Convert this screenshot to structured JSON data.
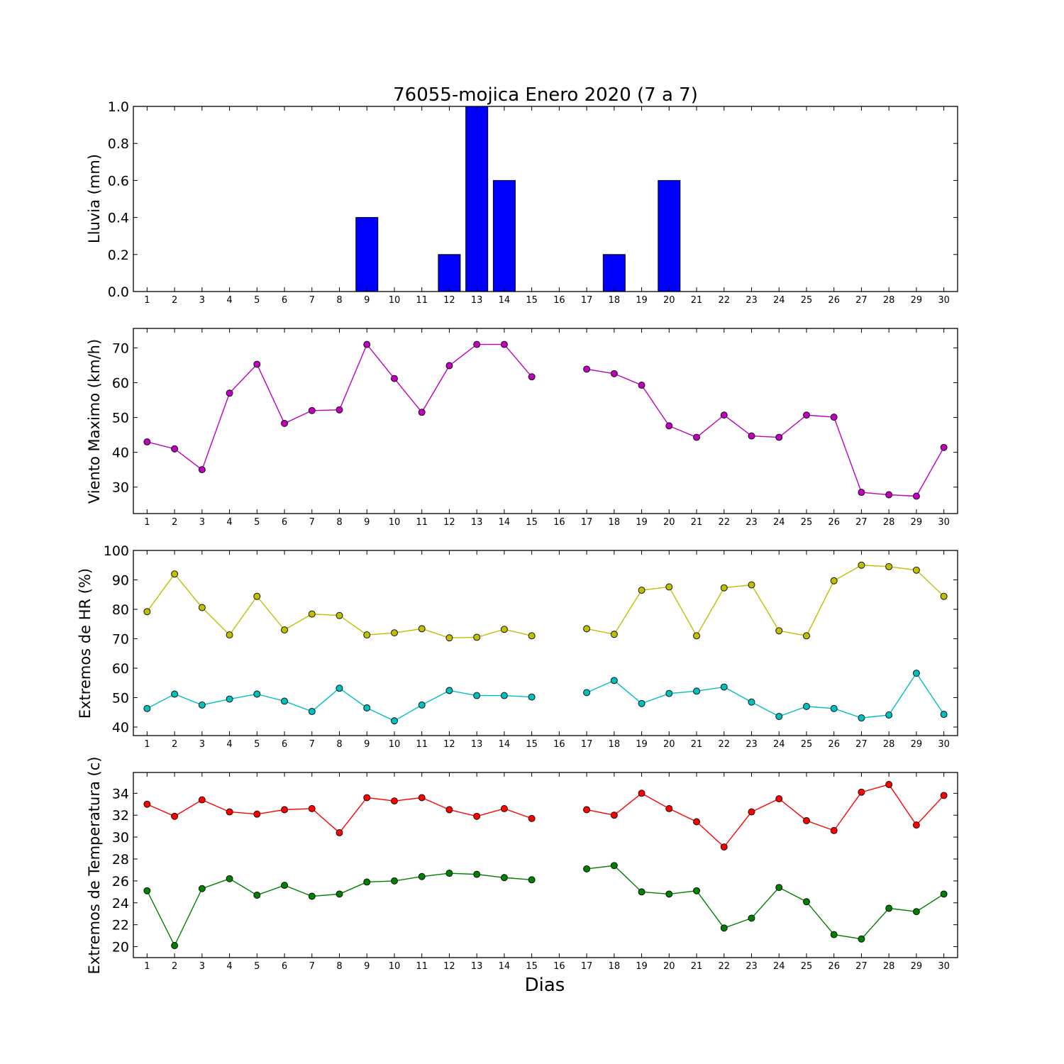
{
  "title": "76055-mojica Enero 2020  (7 a 7)",
  "xlabel": "Dias",
  "chart_data": [
    {
      "type": "bar",
      "id": "lluvia",
      "ylabel": "Lluvia (mm)",
      "x": [
        1,
        2,
        3,
        4,
        5,
        6,
        7,
        8,
        9,
        10,
        11,
        12,
        13,
        14,
        15,
        16,
        17,
        18,
        19,
        20,
        21,
        22,
        23,
        24,
        25,
        26,
        27,
        28,
        29,
        30
      ],
      "ylim": [
        0,
        1.0
      ],
      "yticks": [
        0.0,
        0.2,
        0.4,
        0.6,
        0.8,
        1.0
      ],
      "series": [
        {
          "color": "#0000ff",
          "values": [
            0,
            0,
            0,
            0,
            0,
            0,
            0,
            0,
            0.4,
            0,
            0,
            0.2,
            1.0,
            0.6,
            0,
            0,
            0,
            0.2,
            0,
            0.6,
            0,
            0,
            0,
            0,
            0,
            0,
            0,
            0,
            0,
            0
          ]
        }
      ]
    },
    {
      "type": "line",
      "id": "viento",
      "ylabel": "Viento Maximo (km/h)",
      "x": [
        1,
        2,
        3,
        4,
        5,
        6,
        7,
        8,
        9,
        10,
        11,
        12,
        13,
        14,
        15,
        16,
        17,
        18,
        19,
        20,
        21,
        22,
        23,
        24,
        25,
        26,
        27,
        28,
        29,
        30
      ],
      "ylim": [
        22.4,
        75.6
      ],
      "yticks": [
        30,
        40,
        50,
        60,
        70
      ],
      "series": [
        {
          "color": "#bf00bf",
          "values": [
            43,
            41,
            35,
            57,
            65.3,
            48.3,
            52,
            52.2,
            71,
            61.2,
            51.5,
            64.9,
            71,
            71,
            61.7,
            null,
            63.9,
            62.6,
            59.3,
            47.6,
            44.3,
            50.7,
            44.7,
            44.3,
            50.7,
            50.1,
            28.5,
            27.8,
            27.4,
            41.4
          ]
        }
      ]
    },
    {
      "type": "line",
      "id": "hr",
      "ylabel": "Extremos de HR (%)",
      "x": [
        1,
        2,
        3,
        4,
        5,
        6,
        7,
        8,
        9,
        10,
        11,
        12,
        13,
        14,
        15,
        16,
        17,
        18,
        19,
        20,
        21,
        22,
        23,
        24,
        25,
        26,
        27,
        28,
        29,
        30
      ],
      "ylim": [
        37.1,
        100
      ],
      "yticks": [
        40,
        50,
        60,
        70,
        80,
        90,
        100
      ],
      "series": [
        {
          "color": "#bfbf00",
          "values": [
            79.2,
            92,
            80.6,
            71.3,
            84.4,
            73,
            78.4,
            77.9,
            71.3,
            72,
            73.4,
            70.3,
            70.5,
            73.2,
            71,
            null,
            73.4,
            71.5,
            86.5,
            87.6,
            71,
            87.3,
            88.3,
            72.7,
            71,
            89.7,
            95,
            94.5,
            93.3,
            84.4
          ]
        },
        {
          "color": "#00bfbf",
          "values": [
            46.3,
            51.2,
            47.5,
            49.5,
            51.2,
            48.8,
            45.3,
            53.2,
            46.5,
            42.1,
            47.5,
            52.4,
            50.7,
            50.7,
            50.2,
            null,
            51.7,
            55.8,
            48,
            51.4,
            52.2,
            53.6,
            48.5,
            43.6,
            47,
            46.3,
            43.1,
            44.1,
            58.3,
            44.3
          ]
        }
      ]
    },
    {
      "type": "line",
      "id": "temp",
      "ylabel": "Extremos de Temperatura (c)",
      "x": [
        1,
        2,
        3,
        4,
        5,
        6,
        7,
        8,
        9,
        10,
        11,
        12,
        13,
        14,
        15,
        16,
        17,
        18,
        19,
        20,
        21,
        22,
        23,
        24,
        25,
        26,
        27,
        28,
        29,
        30
      ],
      "ylim": [
        19.0,
        35.9
      ],
      "yticks": [
        20,
        22,
        24,
        26,
        28,
        30,
        32,
        34
      ],
      "series": [
        {
          "color": "#ff0000",
          "values": [
            33,
            31.9,
            33.4,
            32.3,
            32.1,
            32.5,
            32.6,
            30.4,
            33.6,
            33.3,
            33.6,
            32.5,
            31.9,
            32.6,
            31.7,
            null,
            32.5,
            32,
            34,
            32.6,
            31.4,
            29.1,
            32.3,
            33.5,
            31.5,
            30.6,
            34.1,
            34.8,
            31.1,
            33.8
          ]
        },
        {
          "color": "#008000",
          "values": [
            25.1,
            20.1,
            25.3,
            26.2,
            24.7,
            25.6,
            24.6,
            24.8,
            25.9,
            26,
            26.4,
            26.7,
            26.6,
            26.3,
            26.1,
            null,
            27.1,
            27.4,
            25,
            24.8,
            25.1,
            21.7,
            22.6,
            25.4,
            24.1,
            21.1,
            20.7,
            23.5,
            23.2,
            24.8
          ]
        }
      ]
    }
  ]
}
